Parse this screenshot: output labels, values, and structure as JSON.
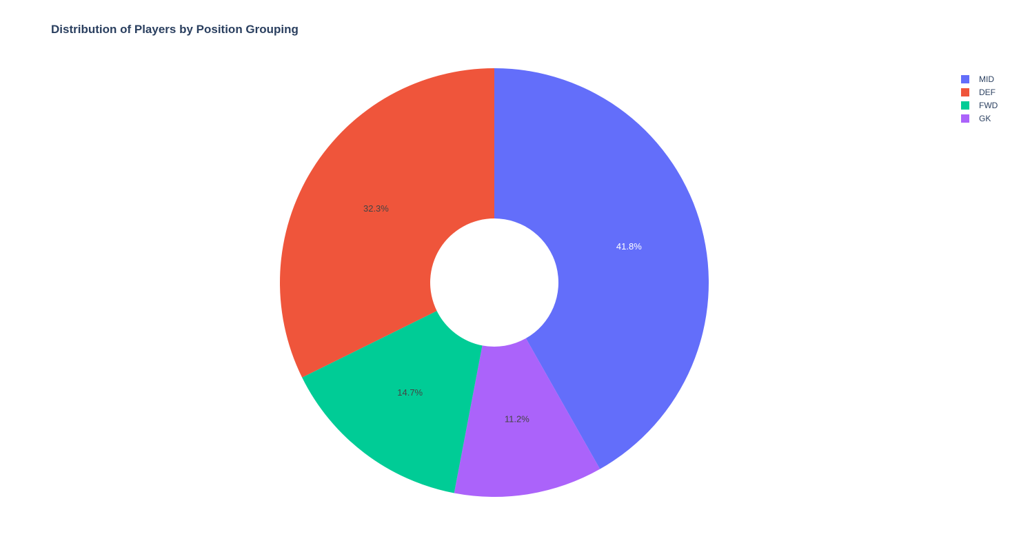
{
  "chart_data": {
    "type": "pie",
    "title": "Distribution of Players by Position Grouping",
    "hole": true,
    "legend_position": "top-right",
    "slices": [
      {
        "label": "MID",
        "value": 41.8,
        "text": "41.8%",
        "color": "#636efa",
        "text_color": "#ffffff"
      },
      {
        "label": "GK",
        "value": 11.2,
        "text": "11.2%",
        "color": "#ab63fa",
        "text_color": "#444444"
      },
      {
        "label": "FWD",
        "value": 14.7,
        "text": "14.7%",
        "color": "#00cc96",
        "text_color": "#444444"
      },
      {
        "label": "DEF",
        "value": 32.3,
        "text": "32.3%",
        "color": "#ef553b",
        "text_color": "#444444"
      }
    ],
    "legend": [
      {
        "label": "MID",
        "color": "#636efa"
      },
      {
        "label": "DEF",
        "color": "#ef553b"
      },
      {
        "label": "FWD",
        "color": "#00cc96"
      },
      {
        "label": "GK",
        "color": "#ab63fa"
      }
    ]
  }
}
